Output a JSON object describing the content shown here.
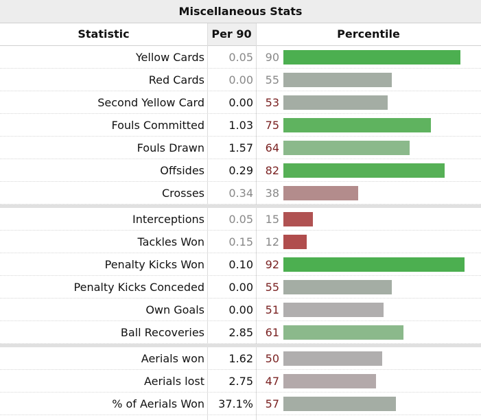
{
  "table": {
    "title": "Miscellaneous Stats",
    "columns": {
      "statistic": "Statistic",
      "per90": "Per 90",
      "percentile": "Percentile"
    },
    "colors": {
      "high": "#4caf50",
      "midhigh": "#8bb98b",
      "neutral": "#a4ada4",
      "midlow": "#b08c8c",
      "low": "#b05252",
      "neutral_gray": "#b0aeae"
    },
    "groups": [
      [
        {
          "stat": "Yellow Cards",
          "per90": "0.05",
          "percentile": 90,
          "pct_label": "90",
          "dim": true,
          "color": "#4caf50"
        },
        {
          "stat": "Red Cards",
          "per90": "0.00",
          "percentile": 55,
          "pct_label": "55",
          "dim": true,
          "color": "#a4ada4"
        },
        {
          "stat": "Second Yellow Card",
          "per90": "0.00",
          "percentile": 53,
          "pct_label": "53",
          "dim": false,
          "color": "#a4ada4"
        },
        {
          "stat": "Fouls Committed",
          "per90": "1.03",
          "percentile": 75,
          "pct_label": "75",
          "dim": false,
          "color": "#5fb35f"
        },
        {
          "stat": "Fouls Drawn",
          "per90": "1.57",
          "percentile": 64,
          "pct_label": "64",
          "dim": false,
          "color": "#8bb98b"
        },
        {
          "stat": "Offsides",
          "per90": "0.29",
          "percentile": 82,
          "pct_label": "82",
          "dim": false,
          "color": "#56b056"
        },
        {
          "stat": "Crosses",
          "per90": "0.34",
          "percentile": 38,
          "pct_label": "38",
          "dim": true,
          "color": "#b38c8c"
        }
      ],
      [
        {
          "stat": "Interceptions",
          "per90": "0.05",
          "percentile": 15,
          "pct_label": "15",
          "dim": true,
          "color": "#b05252"
        },
        {
          "stat": "Tackles Won",
          "per90": "0.15",
          "percentile": 12,
          "pct_label": "12",
          "dim": true,
          "color": "#b04d4d"
        },
        {
          "stat": "Penalty Kicks Won",
          "per90": "0.10",
          "percentile": 92,
          "pct_label": "92",
          "dim": false,
          "color": "#4caf50"
        },
        {
          "stat": "Penalty Kicks Conceded",
          "per90": "0.00",
          "percentile": 55,
          "pct_label": "55",
          "dim": false,
          "color": "#a4ada4"
        },
        {
          "stat": "Own Goals",
          "per90": "0.00",
          "percentile": 51,
          "pct_label": "51",
          "dim": false,
          "color": "#b0aeae"
        },
        {
          "stat": "Ball Recoveries",
          "per90": "2.85",
          "percentile": 61,
          "pct_label": "61",
          "dim": false,
          "color": "#8bb98b"
        }
      ],
      [
        {
          "stat": "Aerials won",
          "per90": "1.62",
          "percentile": 50,
          "pct_label": "50",
          "dim": false,
          "color": "#b0aeae"
        },
        {
          "stat": "Aerials lost",
          "per90": "2.75",
          "percentile": 47,
          "pct_label": "47",
          "dim": false,
          "color": "#b3a9aa"
        },
        {
          "stat": "% of Aerials Won",
          "per90": "37.1%",
          "percentile": 57,
          "pct_label": "57",
          "dim": false,
          "color": "#a4ada4"
        }
      ]
    ]
  }
}
